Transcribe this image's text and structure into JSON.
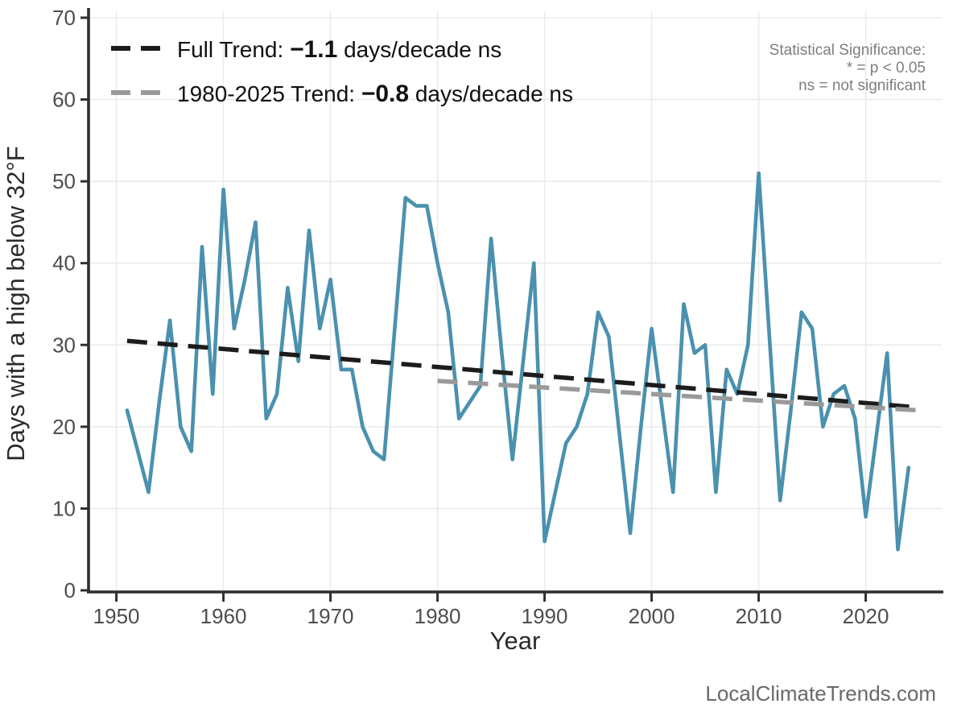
{
  "page": {
    "background": "#ffffff"
  },
  "colors": {
    "series_blue": "#4B91AF",
    "gridline": "#ebebeb",
    "spine": "#2f2f2f",
    "tick_label": "#4d4d4d",
    "axis_title": "#2b2b2b",
    "legend_text": "#111111",
    "significance_text": "#7e7e7e",
    "watermark_text": "#696969"
  },
  "legend": {
    "full_trend": {
      "prefix": "Full Trend: ",
      "value": "−1.1",
      "suffix": " days/decade ns",
      "color": "#1c1c1c"
    },
    "recent_trend": {
      "prefix": "1980-2025 Trend: ",
      "value": "−0.8",
      "suffix": " days/decade ns",
      "color": "#9a9a9a"
    }
  },
  "significance_note": {
    "line1": "Statistical Significance:",
    "line2": "* = p < 0.05",
    "line3": "ns = not significant"
  },
  "watermark": {
    "text": "LocalClimateTrends.com"
  },
  "chart_data": {
    "type": "line",
    "title": "",
    "xlabel": "Year",
    "ylabel": "Days with a high below 32°F",
    "grid": true,
    "legend_position": "top-left",
    "xlim": [
      1947.4,
      2027.1
    ],
    "ylim": [
      0,
      70
    ],
    "x_ticks": [
      1950,
      1960,
      1970,
      1980,
      1990,
      2000,
      2010,
      2020
    ],
    "y_ticks": [
      0,
      10,
      20,
      30,
      40,
      50,
      60,
      70
    ],
    "series": [
      {
        "name": "Days with a high below 32°F",
        "color": "#4B91AF",
        "x": [
          1951,
          1952,
          1953,
          1954,
          1955,
          1956,
          1957,
          1958,
          1959,
          1960,
          1961,
          1962,
          1963,
          1964,
          1965,
          1966,
          1967,
          1968,
          1969,
          1970,
          1971,
          1972,
          1973,
          1974,
          1975,
          1976,
          1977,
          1978,
          1979,
          1980,
          1981,
          1982,
          1983,
          1984,
          1985,
          1986,
          1987,
          1988,
          1989,
          1990,
          1991,
          1992,
          1993,
          1994,
          1995,
          1996,
          1997,
          1998,
          1999,
          2000,
          2001,
          2002,
          2003,
          2004,
          2005,
          2006,
          2007,
          2008,
          2009,
          2010,
          2011,
          2012,
          2013,
          2014,
          2015,
          2016,
          2017,
          2018,
          2019,
          2020,
          2021,
          2022,
          2023,
          2024
        ],
        "values": [
          22,
          17,
          12,
          23,
          33,
          20,
          17,
          42,
          24,
          49,
          32,
          38,
          45,
          21,
          24,
          37,
          28,
          44,
          32,
          38,
          27,
          27,
          20,
          17,
          16,
          32,
          48,
          47,
          47,
          40,
          34,
          21,
          23,
          25,
          43,
          29,
          16,
          28,
          40,
          6,
          12,
          18,
          20,
          24,
          34,
          31,
          19,
          7,
          20,
          32,
          22,
          12,
          35,
          29,
          30,
          12,
          27,
          24,
          30,
          51,
          31,
          11,
          22,
          34,
          32,
          20,
          24,
          25,
          21,
          9,
          19,
          29,
          5,
          15
        ]
      }
    ],
    "trend_lines": [
      {
        "name": "Full Trend",
        "slope_per_decade": -1.1,
        "significance": "ns",
        "color": "#1c1c1c",
        "x": [
          1951,
          2024.5
        ],
        "values": [
          30.5,
          22.4
        ]
      },
      {
        "name": "1980-2025 Trend",
        "slope_per_decade": -0.8,
        "significance": "ns",
        "color": "#9a9a9a",
        "x": [
          1980,
          2025
        ],
        "values": [
          25.6,
          22.0
        ]
      }
    ]
  }
}
